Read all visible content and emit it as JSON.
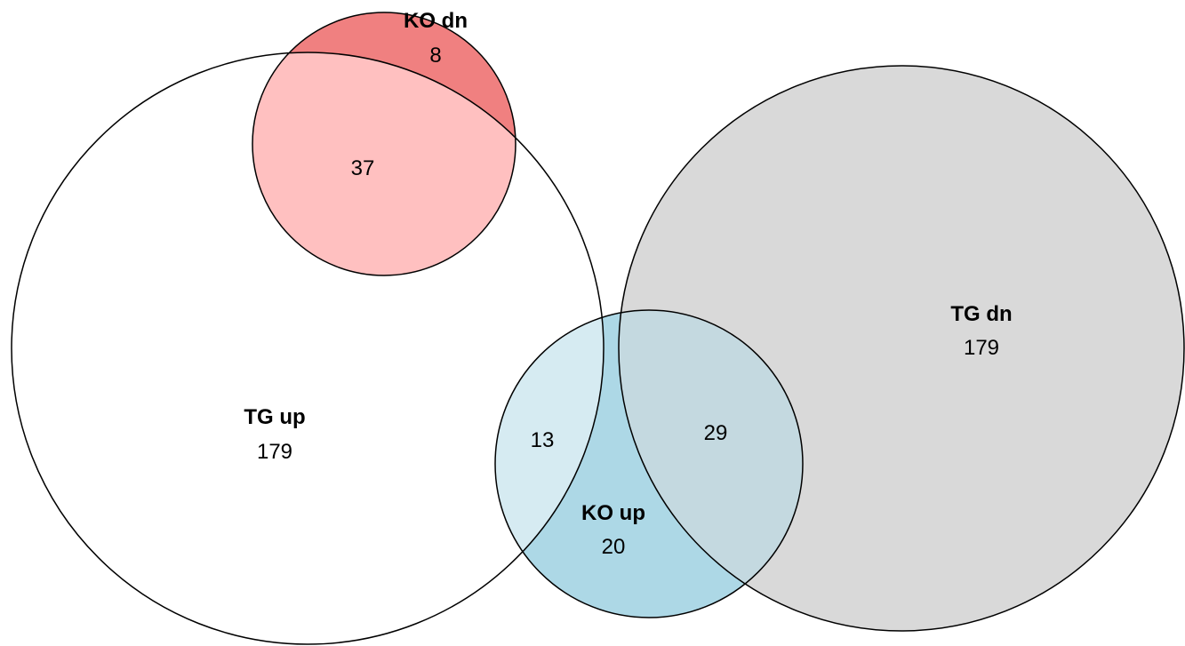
{
  "sets": {
    "tg_up": {
      "name": "TG up",
      "count": "179",
      "color": "#ffffff"
    },
    "ko_dn": {
      "name": "KO dn",
      "count": "8",
      "color": "#f08080"
    },
    "tg_dn": {
      "name": "TG dn",
      "count": "179",
      "color": "#d9d9d9"
    },
    "ko_up": {
      "name": "KO up",
      "count": "20",
      "color": "#add8e6"
    }
  },
  "overlaps": {
    "tg_up_ko_dn": {
      "count": "37",
      "color": "#ffc0c0"
    },
    "tg_up_ko_up": {
      "count": "13",
      "color": "#d6ebf2"
    },
    "tg_dn_ko_up": {
      "count": "29",
      "color": "#c4d9e0"
    }
  }
}
